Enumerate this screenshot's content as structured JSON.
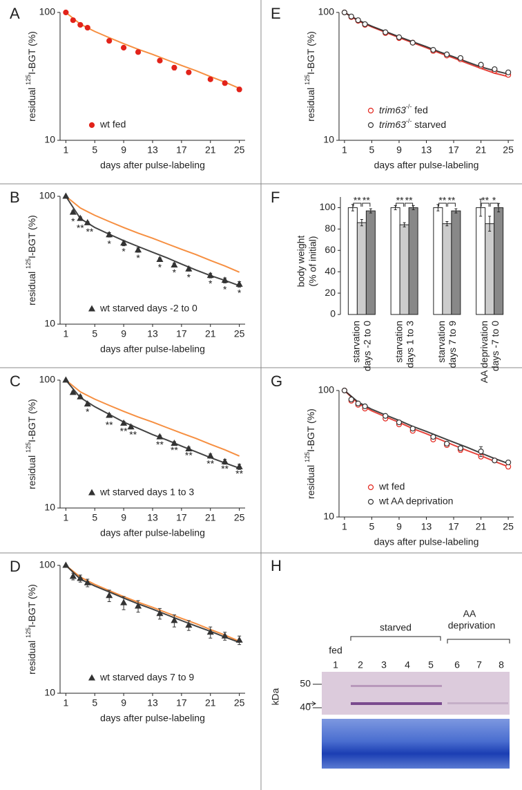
{
  "chart_data": [
    {
      "panel": "A",
      "type": "scatter",
      "log_y": true,
      "xlim": [
        0.2,
        25.8
      ],
      "ylim": [
        10,
        100
      ],
      "xticks": [
        1,
        5,
        9,
        13,
        17,
        21,
        25
      ],
      "yticks": [
        10,
        100
      ],
      "xlabel": "days after pulse-labeling",
      "ylabel": [
        "residual ",
        "125",
        "I-BGT (%)"
      ],
      "legend": "lower left",
      "x": [
        1,
        2,
        3,
        4,
        7,
        9,
        11,
        14,
        16,
        18,
        21,
        23,
        25
      ],
      "series": [
        {
          "name": "wt fed",
          "color": "#e2231a",
          "marker": "circle",
          "filled": true,
          "values": [
            100,
            87,
            80,
            76,
            60,
            53,
            49,
            42,
            37,
            34,
            30,
            28,
            25
          ],
          "errors": [
            0,
            2,
            2,
            2,
            2,
            1.5,
            1.5,
            1,
            1.5,
            1,
            1,
            1,
            1
          ]
        }
      ],
      "fits": {
        "x": [
          1,
          3,
          5,
          7,
          9,
          11,
          13,
          15,
          17,
          19,
          21,
          23,
          25
        ],
        "lines": [
          {
            "color": "#f47b20",
            "values": [
              100,
              81,
              71,
              63.5,
              57,
              51.5,
              47,
              42.5,
              38.5,
              35,
              31.5,
              28.5,
              25.5
            ]
          }
        ]
      },
      "annotations": []
    },
    {
      "panel": "B",
      "type": "scatter",
      "log_y": true,
      "xlim": [
        0.2,
        25.8
      ],
      "ylim": [
        10,
        100
      ],
      "xticks": [
        1,
        5,
        9,
        13,
        17,
        21,
        25
      ],
      "yticks": [
        10,
        100
      ],
      "xlabel": "days after pulse-labeling",
      "ylabel": [
        "residual ",
        "125",
        "I-BGT (%)"
      ],
      "legend": "lower left",
      "x": [
        1,
        2,
        3,
        4,
        7,
        9,
        11,
        14,
        16,
        18,
        21,
        23,
        25
      ],
      "series": [
        {
          "name": "wt starved days -2 to 0",
          "color": "#333333",
          "marker": "triangle",
          "filled": true,
          "values": [
            100,
            75,
            67,
            62,
            50,
            43,
            38,
            32,
            29,
            27,
            24,
            22,
            20.5
          ],
          "errors": [
            0,
            2,
            2,
            1.5,
            2,
            2,
            1.5,
            1,
            1,
            1,
            1,
            1,
            1
          ]
        }
      ],
      "fits": {
        "x": [
          1,
          3,
          5,
          7,
          9,
          11,
          13,
          15,
          17,
          19,
          21,
          23,
          25
        ],
        "lines": [
          {
            "color": "#f47b20",
            "values": [
              100,
              81,
              71,
              63.5,
              57,
              51.5,
              47,
              42.5,
              38.5,
              35,
              31.5,
              28.5,
              25.5
            ]
          },
          {
            "color": "#222222",
            "values": [
              100,
              67,
              57,
              50.5,
              45,
              40.5,
              36.5,
              33,
              29.5,
              26.5,
              24,
              22,
              20
            ]
          }
        ]
      },
      "annotations": [
        {
          "x": 2,
          "y": 63,
          "text": "*"
        },
        {
          "x": 3,
          "y": 56,
          "text": "**"
        },
        {
          "x": 4.3,
          "y": 52,
          "text": "**"
        },
        {
          "x": 7,
          "y": 42,
          "text": "*"
        },
        {
          "x": 9,
          "y": 36.5,
          "text": "*"
        },
        {
          "x": 11,
          "y": 32.5,
          "text": "*"
        },
        {
          "x": 14,
          "y": 27.5,
          "text": "*"
        },
        {
          "x": 16,
          "y": 25,
          "text": "*"
        },
        {
          "x": 18,
          "y": 23,
          "text": "*"
        },
        {
          "x": 21,
          "y": 20.5,
          "text": "*"
        },
        {
          "x": 23,
          "y": 18.5,
          "text": "*"
        },
        {
          "x": 25,
          "y": 17.3,
          "text": "*"
        }
      ]
    },
    {
      "panel": "C",
      "type": "scatter",
      "log_y": true,
      "xlim": [
        0.2,
        25.8
      ],
      "ylim": [
        10,
        100
      ],
      "xticks": [
        1,
        5,
        9,
        13,
        17,
        21,
        25
      ],
      "yticks": [
        10,
        100
      ],
      "xlabel": "days after pulse-labeling",
      "ylabel": [
        "residual ",
        "125",
        "I-BGT (%)"
      ],
      "legend": "lower left",
      "x": [
        1,
        2,
        3,
        4,
        7,
        9,
        10,
        14,
        16,
        18,
        21,
        23,
        25
      ],
      "series": [
        {
          "name": "wt starved days 1 to 3",
          "color": "#333333",
          "marker": "triangle",
          "filled": true,
          "values": [
            100,
            80,
            74,
            65,
            53,
            46,
            43,
            36,
            32,
            29,
            25.5,
            23,
            21
          ],
          "errors": [
            0,
            2,
            2,
            2,
            1.5,
            1.5,
            1.5,
            1,
            1,
            1,
            1,
            1,
            1
          ]
        }
      ],
      "fits": {
        "x": [
          1,
          3,
          5,
          7,
          9,
          11,
          13,
          15,
          17,
          19,
          21,
          23,
          25
        ],
        "lines": [
          {
            "color": "#f47b20",
            "values": [
              100,
              81,
              71,
              63.5,
              57,
              51.5,
              47,
              42.5,
              38.5,
              35,
              31.5,
              28.5,
              25.5
            ]
          },
          {
            "color": "#222222",
            "values": [
              100,
              73,
              62,
              54,
              47,
              42,
              37.5,
              34,
              30.5,
              27.5,
              24.8,
              22.5,
              20.5
            ]
          }
        ]
      },
      "annotations": [
        {
          "x": 4,
          "y": 56,
          "text": "*"
        },
        {
          "x": 7,
          "y": 44,
          "text": "**"
        },
        {
          "x": 9,
          "y": 39.5,
          "text": "**"
        },
        {
          "x": 10.3,
          "y": 37,
          "text": "**"
        },
        {
          "x": 14,
          "y": 31,
          "text": "**"
        },
        {
          "x": 16,
          "y": 28,
          "text": "**"
        },
        {
          "x": 18,
          "y": 25.5,
          "text": "**"
        },
        {
          "x": 21,
          "y": 22,
          "text": "**"
        },
        {
          "x": 23,
          "y": 20,
          "text": "**"
        },
        {
          "x": 25,
          "y": 18.3,
          "text": "**"
        }
      ]
    },
    {
      "panel": "D",
      "type": "scatter",
      "log_y": true,
      "xlim": [
        0.2,
        25.8
      ],
      "ylim": [
        10,
        100
      ],
      "xticks": [
        1,
        5,
        9,
        13,
        17,
        21,
        25
      ],
      "yticks": [
        10,
        100
      ],
      "xlabel": "days after pulse-labeling",
      "ylabel": [
        "residual ",
        "125",
        "I-BGT (%)"
      ],
      "legend": "lower left",
      "x": [
        1,
        2,
        3,
        4,
        7,
        9,
        11,
        14,
        16,
        18,
        21,
        23,
        25
      ],
      "series": [
        {
          "name": "wt starved days 7 to 9",
          "color": "#333333",
          "marker": "triangle",
          "filled": true,
          "values": [
            100,
            82,
            79,
            73,
            58,
            51,
            48,
            42,
            37,
            34,
            30,
            28,
            26
          ],
          "errors": [
            0,
            5,
            5,
            5,
            6,
            6,
            5,
            4,
            4,
            3,
            3,
            2,
            2
          ]
        }
      ],
      "fits": {
        "x": [
          1,
          3,
          5,
          7,
          9,
          11,
          13,
          15,
          17,
          19,
          21,
          23,
          25
        ],
        "lines": [
          {
            "color": "#f47b20",
            "values": [
              100,
              81,
              71,
              63.5,
              57,
              51.5,
              47,
              42.5,
              38.5,
              35,
              31.5,
              28.5,
              25.5
            ]
          },
          {
            "color": "#222222",
            "values": [
              100,
              78,
              69,
              62,
              55.5,
              50,
              45.5,
              41,
              37,
              33.5,
              30.5,
              27.5,
              25
            ]
          }
        ]
      },
      "annotations": []
    },
    {
      "panel": "E",
      "type": "scatter",
      "log_y": true,
      "xlim": [
        0.2,
        25.8
      ],
      "ylim": [
        10,
        100
      ],
      "xticks": [
        1,
        5,
        9,
        13,
        17,
        21,
        25
      ],
      "yticks": [
        10,
        100
      ],
      "xlabel": "days after pulse-labeling",
      "ylabel": [
        "residual ",
        "125",
        "I-BGT (%)"
      ],
      "legend": "lower left",
      "x": [
        1,
        2,
        3,
        4,
        7,
        9,
        11,
        14,
        16,
        18,
        21,
        23,
        25
      ],
      "series": [
        {
          "name": "trim63-/- fed",
          "color": "#e2231a",
          "marker": "circle",
          "filled": false,
          "values": [
            100,
            92,
            86,
            80,
            69,
            63,
            58,
            50,
            46,
            43,
            38,
            35,
            32.5
          ],
          "errors": [
            0,
            1,
            1,
            1,
            1,
            1,
            1,
            1,
            1,
            1,
            1,
            1,
            1
          ]
        },
        {
          "name": "trim63-/- starved",
          "color": "#333333",
          "marker": "circle",
          "filled": false,
          "values": [
            100,
            93,
            87,
            81,
            70,
            64,
            58,
            51,
            47,
            44,
            39,
            36,
            34
          ],
          "errors": [
            0,
            1,
            1,
            1,
            1,
            1,
            1,
            1,
            1,
            1,
            1,
            1,
            1
          ]
        }
      ],
      "fits": {
        "x": [
          1,
          3,
          5,
          7,
          9,
          11,
          13,
          15,
          17,
          19,
          21,
          23,
          25
        ],
        "lines": [
          {
            "color": "#e2231a",
            "values": [
              100,
              86,
              77,
              70,
              63.5,
              58,
              53,
              48,
              44,
              40,
              36.5,
              33.5,
              31.5
            ]
          },
          {
            "color": "#222222",
            "values": [
              100,
              87,
              78,
              71,
              64.5,
              59,
              54,
              49,
              45,
              41,
              37.5,
              35,
              33
            ]
          }
        ]
      },
      "annotations": []
    },
    {
      "panel": "F",
      "type": "bar",
      "ylim": [
        0,
        110
      ],
      "yticks": [
        0,
        20,
        40,
        60,
        80,
        100
      ],
      "ylabel": [
        "body weight",
        "(% of initial)"
      ],
      "categories": [
        [
          "starvation",
          "days -2 to 0"
        ],
        [
          "starvation",
          "days 1 to 3"
        ],
        [
          "starvation",
          "days 7 to 9"
        ],
        [
          "AA deprivation",
          "days -7 to 0"
        ]
      ],
      "series": [
        {
          "color": "#ffffff",
          "values": [
            100,
            100,
            100,
            100
          ],
          "errors": [
            3,
            2,
            3,
            8
          ]
        },
        {
          "color": "#cccccc",
          "values": [
            86,
            84,
            85,
            85
          ],
          "errors": [
            3,
            2,
            2,
            7
          ]
        },
        {
          "color": "#888888",
          "values": [
            97,
            100,
            97,
            100
          ],
          "errors": [
            2,
            2,
            2,
            4
          ]
        }
      ],
      "significance": [
        [
          "**",
          "**"
        ],
        [
          "**",
          "**"
        ],
        [
          "**",
          "**"
        ],
        [
          "**",
          "*"
        ]
      ]
    },
    {
      "panel": "G",
      "type": "scatter",
      "log_y": true,
      "xlim": [
        0.2,
        25.8
      ],
      "ylim": [
        10,
        100
      ],
      "xticks": [
        1,
        5,
        9,
        13,
        17,
        21,
        25
      ],
      "yticks": [
        10,
        100
      ],
      "xlabel": "days after pulse-labeling",
      "ylabel": [
        "residual ",
        "125",
        "I-BGT (%)"
      ],
      "legend": "lower left",
      "x": [
        1,
        2,
        3,
        4,
        7,
        9,
        11,
        14,
        16,
        18,
        21,
        23,
        25
      ],
      "series": [
        {
          "name": "wt fed",
          "color": "#e2231a",
          "marker": "circle",
          "filled": false,
          "values": [
            100,
            83,
            77,
            72,
            60,
            54,
            48,
            41,
            37,
            34,
            30,
            28,
            25
          ],
          "errors": [
            0,
            2,
            1.5,
            1.5,
            1.5,
            1.5,
            1,
            1,
            1,
            1.5,
            1,
            1,
            1
          ]
        },
        {
          "name": "wt AA deprivation",
          "color": "#333333",
          "marker": "circle",
          "filled": false,
          "values": [
            100,
            85,
            79,
            75,
            63,
            56,
            50,
            43,
            38,
            35,
            33,
            28,
            27
          ],
          "errors": [
            0,
            2,
            1.5,
            1.5,
            1.5,
            1.5,
            1,
            1,
            1,
            1,
            3,
            1,
            1
          ]
        }
      ],
      "fits": {
        "x": [
          1,
          3,
          5,
          7,
          9,
          11,
          13,
          15,
          17,
          19,
          21,
          23,
          25
        ],
        "lines": [
          {
            "color": "#e2231a",
            "values": [
              100,
              79,
              69,
              62,
              56,
              50,
              45.5,
              41,
              37,
              33.5,
              30.5,
              27.5,
              25
            ]
          },
          {
            "color": "#222222",
            "values": [
              100,
              81,
              71,
              64,
              58,
              52,
              47.5,
              43,
              39,
              35.5,
              32,
              29,
              26.5
            ]
          }
        ]
      },
      "annotations": []
    }
  ],
  "blot": {
    "panel": "H",
    "fed": "fed",
    "starved": "starved",
    "aa": [
      "AA",
      "deprivation"
    ],
    "lanes": [
      1,
      2,
      3,
      4,
      5,
      6,
      7,
      8
    ],
    "unit": "kDa",
    "markers": [
      50,
      40
    ]
  }
}
